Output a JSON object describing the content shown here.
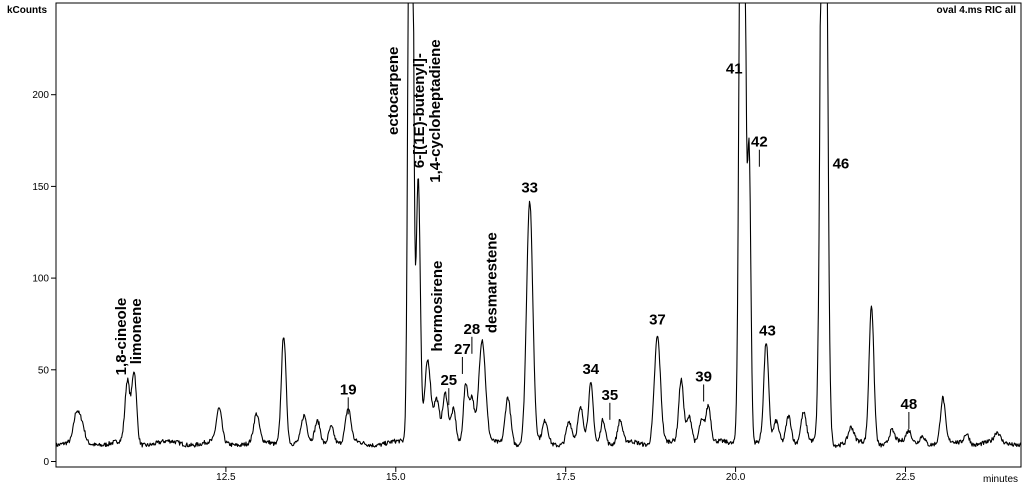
{
  "chart_data": {
    "type": "line",
    "title": "oval 4.ms RIC all",
    "ylabel": "kCounts",
    "xlabel": "minutes",
    "xlim": [
      10.0,
      24.2
    ],
    "ylim": [
      -3,
      250
    ],
    "xticks": [
      {
        "value": 12.5,
        "label": "12.5"
      },
      {
        "value": 15.0,
        "label": "15.0"
      },
      {
        "value": 17.5,
        "label": "17.5"
      },
      {
        "value": 20.0,
        "label": "20.0"
      },
      {
        "value": 22.5,
        "label": "22.5"
      }
    ],
    "yticks": [
      {
        "value": 0,
        "label": "0"
      },
      {
        "value": 50,
        "label": "50"
      },
      {
        "value": 100,
        "label": "100"
      },
      {
        "value": 150,
        "label": "150"
      },
      {
        "value": 200,
        "label": "200"
      }
    ],
    "grid": false,
    "baseline": 10,
    "series": [
      {
        "color": "#000000",
        "peaks": [
          [
            10.3,
            25,
            0.04
          ],
          [
            10.38,
            20,
            0.04
          ],
          [
            11.05,
            43,
            0.035
          ],
          [
            11.15,
            49,
            0.035
          ],
          [
            12.4,
            28,
            0.04
          ],
          [
            12.95,
            25,
            0.04
          ],
          [
            13.35,
            70,
            0.035
          ],
          [
            13.65,
            24,
            0.04
          ],
          [
            13.85,
            22,
            0.04
          ],
          [
            14.05,
            20,
            0.04
          ],
          [
            14.3,
            28,
            0.04
          ],
          [
            15.22,
            600,
            0.03
          ],
          [
            15.33,
            156,
            0.03
          ],
          [
            15.47,
            56,
            0.045
          ],
          [
            15.6,
            33,
            0.04
          ],
          [
            15.73,
            36,
            0.04
          ],
          [
            15.85,
            28,
            0.035
          ],
          [
            16.03,
            43,
            0.035
          ],
          [
            16.12,
            35,
            0.035
          ],
          [
            16.27,
            66,
            0.05
          ],
          [
            16.65,
            36,
            0.04
          ],
          [
            16.97,
            141,
            0.045
          ],
          [
            17.2,
            22,
            0.04
          ],
          [
            17.55,
            22,
            0.04
          ],
          [
            17.72,
            28,
            0.04
          ],
          [
            17.87,
            42,
            0.035
          ],
          [
            18.05,
            24,
            0.035
          ],
          [
            18.3,
            22,
            0.035
          ],
          [
            18.85,
            69,
            0.045
          ],
          [
            19.2,
            44,
            0.035
          ],
          [
            19.32,
            25,
            0.04
          ],
          [
            19.5,
            23,
            0.04
          ],
          [
            19.6,
            30,
            0.035
          ],
          [
            20.1,
            600,
            0.035
          ],
          [
            20.2,
            165,
            0.025
          ],
          [
            20.45,
            64,
            0.035
          ],
          [
            20.6,
            22,
            0.04
          ],
          [
            20.78,
            26,
            0.04
          ],
          [
            21.0,
            26,
            0.04
          ],
          [
            21.3,
            600,
            0.04
          ],
          [
            21.7,
            18,
            0.04
          ],
          [
            22.0,
            86,
            0.035
          ],
          [
            22.3,
            17,
            0.04
          ],
          [
            22.55,
            16,
            0.04
          ],
          [
            22.75,
            15,
            0.04
          ],
          [
            23.05,
            34,
            0.035
          ],
          [
            23.4,
            16,
            0.04
          ],
          [
            23.85,
            15,
            0.04
          ]
        ]
      }
    ],
    "annotations": [
      {
        "text": "1,8-cineole",
        "x": 11.03,
        "y": 47,
        "rotate": true,
        "tick": false
      },
      {
        "text": "limonene",
        "x": 11.25,
        "y": 53,
        "rotate": true,
        "tick": false
      },
      {
        "text": "19",
        "x": 14.3,
        "y": 35,
        "rotate": false,
        "tick": true
      },
      {
        "text": "ectocarpene",
        "x": 15.03,
        "y": 178,
        "rotate": true,
        "tick": false
      },
      {
        "text": "6-[(1E)-butenyl]-",
        "x": 15.42,
        "y": 160,
        "rotate": true,
        "tick": false
      },
      {
        "text": "1,4-cycloheptadiene",
        "x": 15.65,
        "y": 152,
        "rotate": true,
        "tick": false
      },
      {
        "text": "hormosirene",
        "x": 15.68,
        "y": 60,
        "rotate": true,
        "tick": false
      },
      {
        "text": "25",
        "x": 15.78,
        "y": 40,
        "rotate": false,
        "tick": true
      },
      {
        "text": "27",
        "x": 15.98,
        "y": 57,
        "rotate": false,
        "tick": true
      },
      {
        "text": "28",
        "x": 16.12,
        "y": 68,
        "rotate": false,
        "tick": true
      },
      {
        "text": "desmarestene",
        "x": 16.48,
        "y": 70,
        "rotate": true,
        "tick": false
      },
      {
        "text": "33",
        "x": 16.97,
        "y": 145,
        "rotate": false,
        "tick": false
      },
      {
        "text": "34",
        "x": 17.87,
        "y": 46,
        "rotate": false,
        "tick": false
      },
      {
        "text": "35",
        "x": 18.15,
        "y": 32,
        "rotate": false,
        "tick": true
      },
      {
        "text": "37",
        "x": 18.85,
        "y": 73,
        "rotate": false,
        "tick": false
      },
      {
        "text": "39",
        "x": 19.53,
        "y": 42,
        "rotate": false,
        "tick": true
      },
      {
        "text": "41",
        "x": 19.98,
        "y": 210,
        "rotate": false,
        "tick": false
      },
      {
        "text": "42",
        "x": 20.35,
        "y": 170,
        "rotate": false,
        "tick": true
      },
      {
        "text": "43",
        "x": 20.47,
        "y": 67,
        "rotate": false,
        "tick": false
      },
      {
        "text": "46",
        "x": 21.55,
        "y": 158,
        "rotate": false,
        "tick": false
      },
      {
        "text": "48",
        "x": 22.55,
        "y": 27,
        "rotate": false,
        "tick": true
      }
    ]
  }
}
